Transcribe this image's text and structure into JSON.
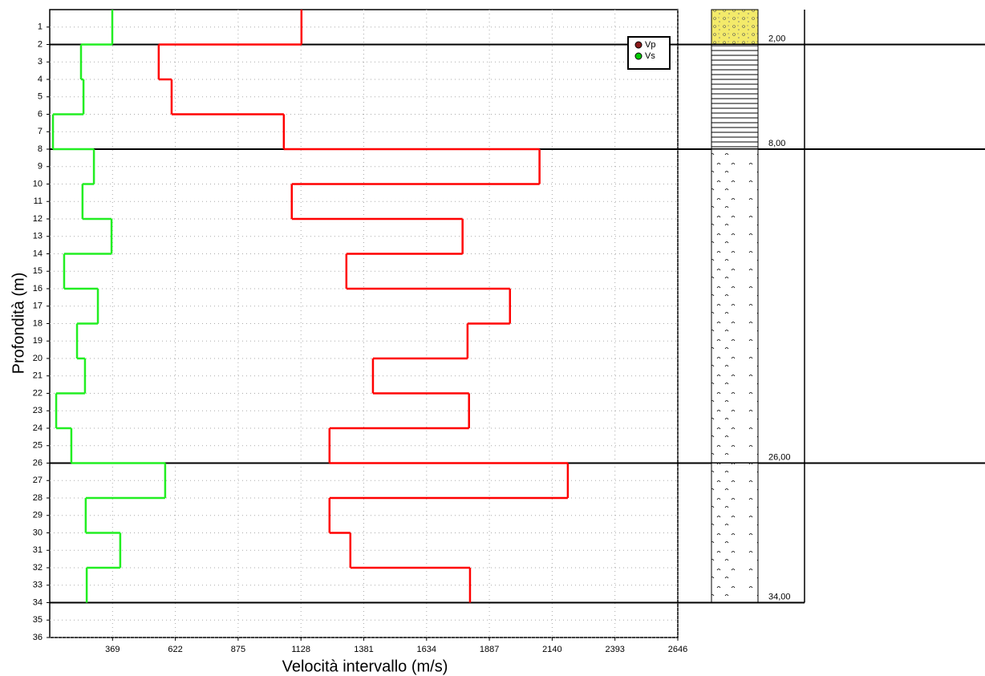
{
  "chart_data": {
    "type": "step",
    "x_label": "Velocità intervallo (m/s)",
    "y_label": "Profondità (m)",
    "xlim": [
      116,
      2646
    ],
    "xticks": [
      369,
      622,
      875,
      1128,
      1381,
      1634,
      1887,
      2140,
      2393,
      2646
    ],
    "ylim": [
      0,
      36
    ],
    "yticks": [
      1,
      2,
      3,
      4,
      5,
      6,
      7,
      8,
      9,
      10,
      11,
      12,
      13,
      14,
      15,
      16,
      17,
      18,
      19,
      20,
      21,
      22,
      23,
      24,
      25,
      26,
      27,
      28,
      29,
      30,
      31,
      32,
      33,
      34,
      35,
      36
    ],
    "y_edges": [
      0,
      2,
      4,
      6,
      8,
      10,
      12,
      14,
      16,
      18,
      20,
      22,
      24,
      26,
      28,
      30,
      32,
      34
    ],
    "grid": true,
    "legend": "top-right",
    "series": [
      {
        "name": "Vp",
        "color": "#ff0000",
        "marker_color": "#8b1a1a",
        "values": [
          1130,
          555,
          607,
          1059,
          2089,
          1091,
          1779,
          1311,
          1970,
          1799,
          1418,
          1805,
          1243,
          2203,
          1243,
          1327,
          1809
        ]
      },
      {
        "name": "Vs",
        "color": "#22ee22",
        "marker_color": "#00cc00",
        "values": [
          368,
          242,
          252,
          129,
          294,
          248,
          365,
          174,
          310,
          226,
          258,
          142,
          203,
          581,
          261,
          400,
          265
        ]
      }
    ],
    "layer_boundaries": [
      {
        "value": 2,
        "label": "2,00"
      },
      {
        "value": 8,
        "label": "8,00"
      },
      {
        "value": 26,
        "label": "26,00"
      },
      {
        "value": 34,
        "label": "34,00"
      }
    ]
  }
}
